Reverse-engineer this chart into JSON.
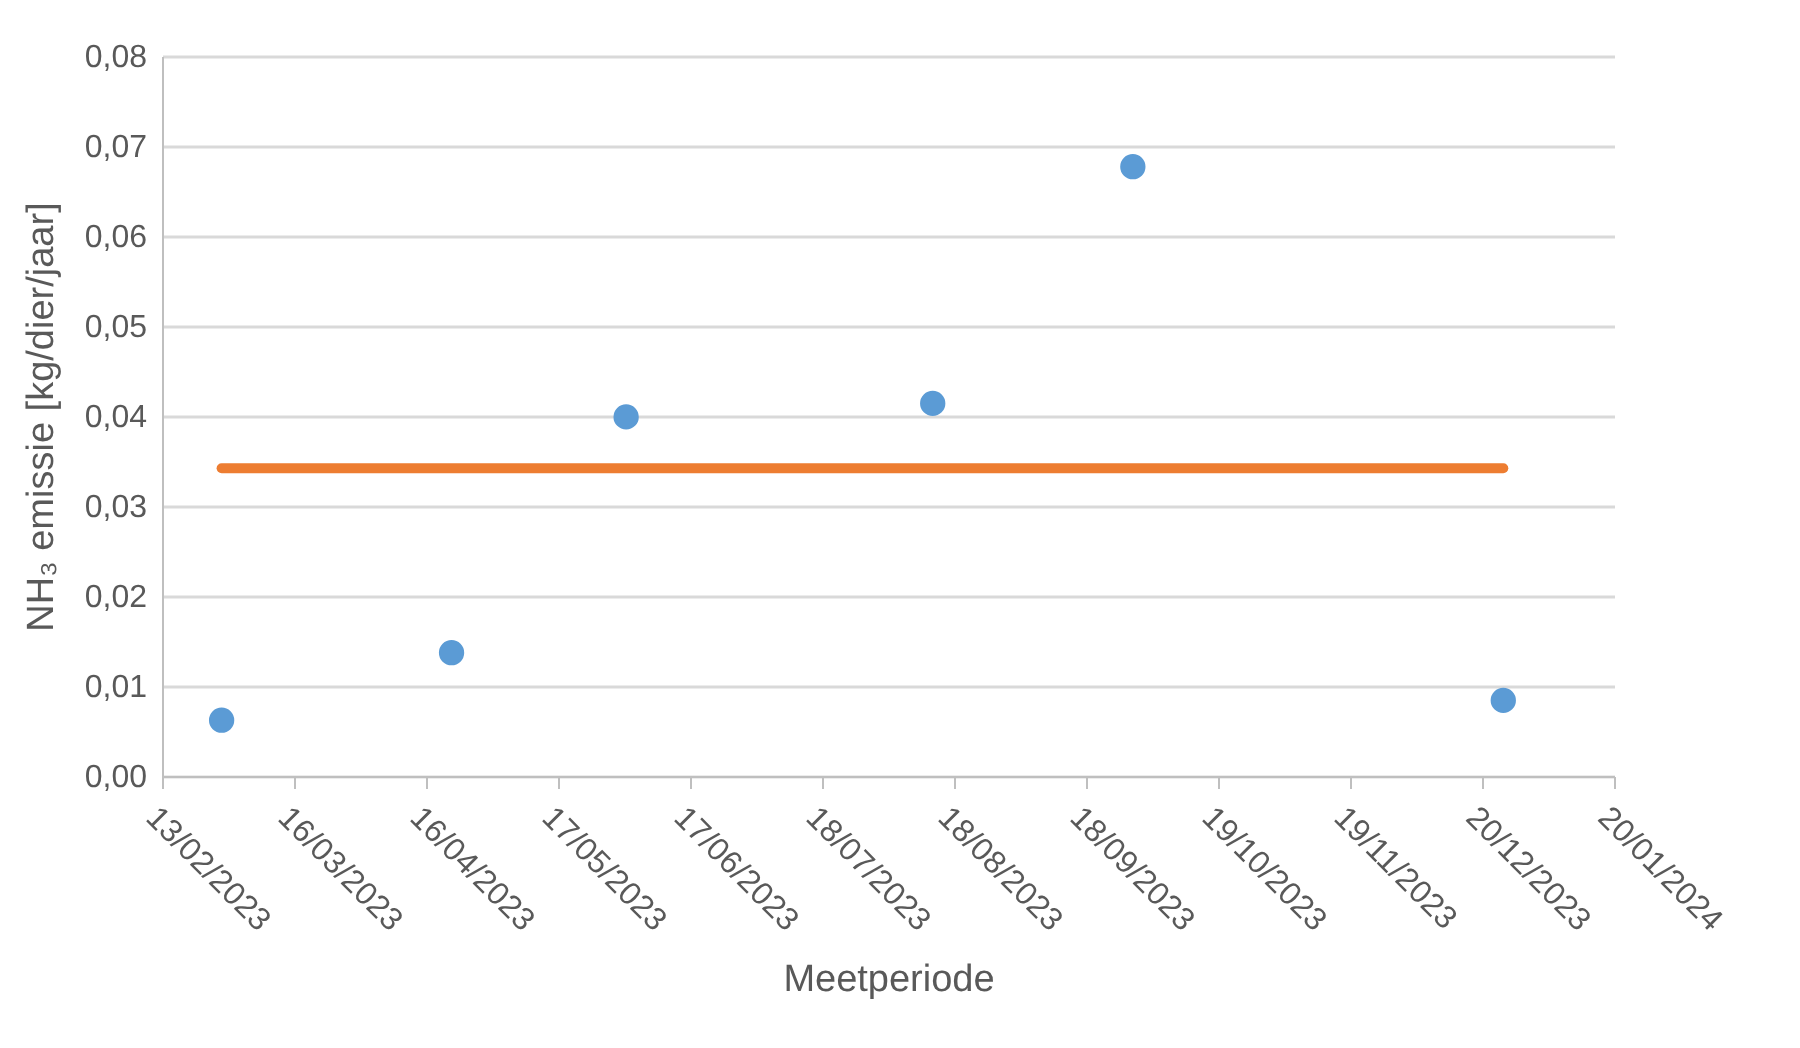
{
  "chart_data": {
    "type": "scatter",
    "xlabel": "Meetperiode",
    "ylabel": "NH₃ emissie [kg/dier/jaar]",
    "series": [
      {
        "color": "#5b9bd5",
        "marker": "circle",
        "x": [
          "2023-02-27",
          "2023-04-22",
          "2023-06-02",
          "2023-08-13",
          "2023-09-29",
          "2023-12-25"
        ],
        "values": [
          0.0062,
          0.0137,
          0.0399,
          0.0414,
          0.0677,
          0.0084
        ]
      },
      {
        "type": "line",
        "color": "#ed7d31",
        "x": [
          "2023-02-27",
          "2023-12-25"
        ],
        "values": [
          0.0342,
          0.0342
        ]
      }
    ],
    "xlim": [
      "2023-02-13",
      "2024-01-20"
    ],
    "xticks": [
      {
        "value": "2023-02-13",
        "label": "13/02/2023"
      },
      {
        "value": "2023-03-16",
        "label": "16/03/2023"
      },
      {
        "value": "2023-04-16",
        "label": "16/04/2023"
      },
      {
        "value": "2023-05-17",
        "label": "17/05/2023"
      },
      {
        "value": "2023-06-17",
        "label": "17/06/2023"
      },
      {
        "value": "2023-07-18",
        "label": "18/07/2023"
      },
      {
        "value": "2023-08-18",
        "label": "18/08/2023"
      },
      {
        "value": "2023-09-18",
        "label": "18/09/2023"
      },
      {
        "value": "2023-10-19",
        "label": "19/10/2023"
      },
      {
        "value": "2023-11-19",
        "label": "19/11/2023"
      },
      {
        "value": "2023-12-20",
        "label": "20/12/2023"
      },
      {
        "value": "2024-01-20",
        "label": "20/01/2024"
      }
    ],
    "ylim": [
      0,
      0.08
    ],
    "yticks": [
      {
        "value": 0,
        "label": "0,00"
      },
      {
        "value": 0.01,
        "label": "0,01"
      },
      {
        "value": 0.02,
        "label": "0,02"
      },
      {
        "value": 0.03,
        "label": "0,03"
      },
      {
        "value": 0.04,
        "label": "0,04"
      },
      {
        "value": 0.05,
        "label": "0,05"
      },
      {
        "value": 0.06,
        "label": "0,06"
      },
      {
        "value": 0.07,
        "label": "0,07"
      },
      {
        "value": 0.08,
        "label": "0,08"
      }
    ],
    "grid": "y"
  }
}
